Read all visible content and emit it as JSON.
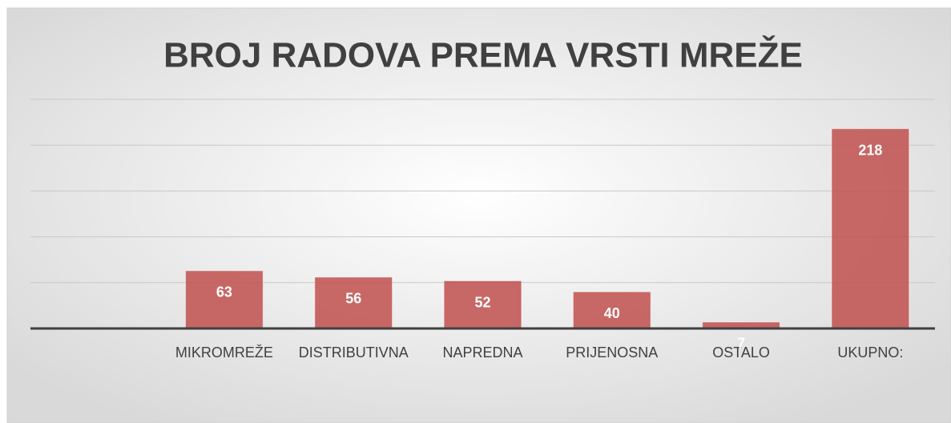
{
  "chart_data": {
    "type": "bar",
    "title": "BROJ RADOVA PREMA VRSTI MREŽE",
    "categories": [
      null,
      "MIKROMREŽE",
      "DISTRIBUTIVNA",
      "NAPREDNA",
      "PRIJENOSNA",
      "OSTALO",
      "UKUPNO:"
    ],
    "values": [
      null,
      63,
      56,
      52,
      40,
      7,
      218
    ],
    "color": "#c0504d",
    "ylim": [
      0,
      250
    ],
    "yticks": [
      0,
      50,
      100,
      150,
      200,
      250
    ],
    "grid": true
  }
}
